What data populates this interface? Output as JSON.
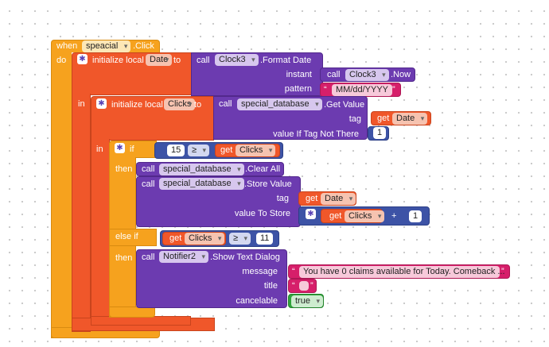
{
  "event": {
    "when": "when",
    "component": "speacial",
    "event": ".Click",
    "do": "do"
  },
  "init_date": {
    "label": "initialize local",
    "var": "Date",
    "to": "to"
  },
  "format_date": {
    "call": "call",
    "component": "Clock3",
    "method": ".Format Date",
    "instant_label": "instant",
    "pattern_label": "pattern"
  },
  "now_call": {
    "call": "call",
    "component": "Clock3",
    "method": ".Now"
  },
  "pattern_value": "MM/dd/YYYY",
  "in1": "in",
  "init_clicks": {
    "label": "initialize local",
    "var": "Clicks",
    "to": "to"
  },
  "get_value": {
    "call": "call",
    "component": "special_database",
    "method": ".Get Value",
    "tag_label": "tag",
    "default_label": "value If Tag Not There"
  },
  "get_date_tag": {
    "get": "get",
    "var": "Date"
  },
  "default_value": "1",
  "in2": "in",
  "if_block": {
    "if": "if",
    "then": "then",
    "else_if": "else if",
    "then2": "then"
  },
  "cmp1": {
    "left": "15",
    "op": "≥",
    "get": "get",
    "var": "Clicks"
  },
  "clear_all": {
    "call": "call",
    "component": "special_database",
    "method": ".Clear All"
  },
  "store_value": {
    "call": "call",
    "component": "special_database",
    "method": ".Store Value",
    "tag_label": "tag",
    "value_label": "value To Store"
  },
  "store_tag": {
    "get": "get",
    "var": "Date"
  },
  "add": {
    "get": "get",
    "var": "Clicks",
    "op": "+",
    "right": "1"
  },
  "cmp2": {
    "get": "get",
    "var": "Clicks",
    "op": "≥",
    "right": "11"
  },
  "notifier": {
    "call": "call",
    "component": "Notifier2",
    "method": ".Show Text Dialog",
    "message_label": "message",
    "title_label": "title",
    "cancelable_label": "cancelable"
  },
  "message_value": "You have 0 claims available for Today. Comeback ...",
  "cancelable_value": "true",
  "colors": {
    "control": "#f6a21e",
    "variable": "#f0572a",
    "component": "#6c3bb0",
    "text": "#d61f6a",
    "math": "#3d53a6",
    "logic": "#2fa33a"
  }
}
